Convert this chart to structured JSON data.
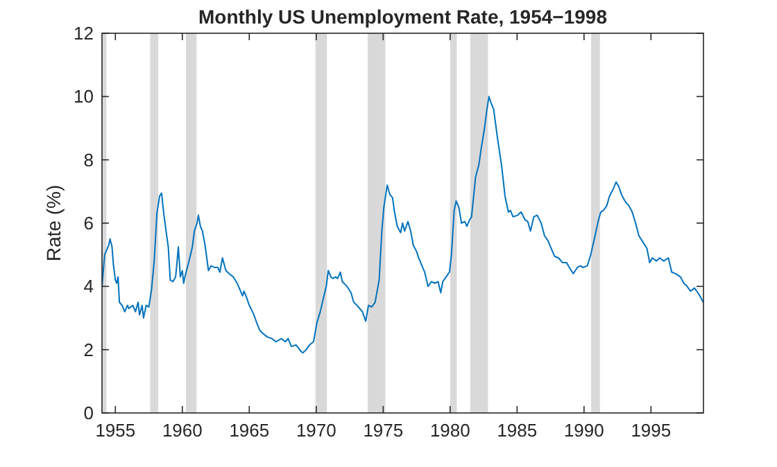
{
  "chart_data": {
    "type": "line",
    "title": "Monthly US Unemployment Rate, 1954−1998",
    "ylabel": "Rate (%)",
    "xlim": [
      1954,
      1998.92
    ],
    "xticks": [
      1955,
      1960,
      1965,
      1970,
      1975,
      1980,
      1985,
      1990,
      1995
    ],
    "ylim": [
      0,
      12
    ],
    "yticks": [
      0,
      2,
      4,
      6,
      8,
      10,
      12
    ],
    "grid": false,
    "line_style": "solid",
    "marker": "none",
    "bands": [
      {
        "axis": "x",
        "from": 1954.0,
        "to": 1954.33,
        "color": "#d9d9d9"
      },
      {
        "axis": "x",
        "from": 1957.6,
        "to": 1958.2,
        "color": "#d9d9d9"
      },
      {
        "axis": "x",
        "from": 1960.27,
        "to": 1961.06,
        "color": "#d9d9d9"
      },
      {
        "axis": "x",
        "from": 1969.94,
        "to": 1970.8,
        "color": "#d9d9d9"
      },
      {
        "axis": "x",
        "from": 1973.84,
        "to": 1975.16,
        "color": "#d9d9d9"
      },
      {
        "axis": "x",
        "from": 1980.0,
        "to": 1980.5,
        "color": "#d9d9d9"
      },
      {
        "axis": "x",
        "from": 1981.5,
        "to": 1982.83,
        "color": "#d9d9d9"
      },
      {
        "axis": "x",
        "from": 1990.53,
        "to": 1991.19,
        "color": "#d9d9d9"
      }
    ],
    "series": [
      {
        "color": "#0072bd",
        "x": [
          1954.0,
          1954.2,
          1954.3,
          1954.5,
          1954.6,
          1954.75,
          1954.85,
          1955.0,
          1955.1,
          1955.2,
          1955.3,
          1955.5,
          1955.7,
          1955.9,
          1956.0,
          1956.3,
          1956.5,
          1956.7,
          1956.8,
          1957.0,
          1957.1,
          1957.3,
          1957.5,
          1957.7,
          1957.9,
          1958.1,
          1958.3,
          1958.45,
          1958.6,
          1958.8,
          1958.95,
          1959.1,
          1959.3,
          1959.5,
          1959.6,
          1959.7,
          1959.85,
          1960.0,
          1960.1,
          1960.25,
          1960.5,
          1960.75,
          1960.9,
          1961.1,
          1961.2,
          1961.35,
          1961.5,
          1961.7,
          1961.95,
          1962.15,
          1962.4,
          1962.65,
          1962.8,
          1963.0,
          1963.25,
          1963.5,
          1963.8,
          1963.95,
          1964.1,
          1964.3,
          1964.5,
          1964.6,
          1964.8,
          1965.0,
          1965.3,
          1965.6,
          1965.8,
          1966.05,
          1966.35,
          1966.7,
          1967.0,
          1967.4,
          1967.7,
          1967.9,
          1968.15,
          1968.5,
          1968.85,
          1969.0,
          1969.25,
          1969.5,
          1969.8,
          1970.05,
          1970.3,
          1970.55,
          1970.75,
          1970.9,
          1971.1,
          1971.25,
          1971.45,
          1971.6,
          1971.8,
          1971.95,
          1972.3,
          1972.6,
          1972.8,
          1973.15,
          1973.45,
          1973.7,
          1973.9,
          1974.15,
          1974.4,
          1974.55,
          1974.7,
          1974.9,
          1975.05,
          1975.3,
          1975.5,
          1975.7,
          1975.85,
          1976.05,
          1976.3,
          1976.45,
          1976.6,
          1976.85,
          1977.05,
          1977.25,
          1977.5,
          1977.65,
          1977.9,
          1978.1,
          1978.35,
          1978.6,
          1978.85,
          1979.1,
          1979.3,
          1979.45,
          1979.7,
          1979.95,
          1980.1,
          1980.3,
          1980.45,
          1980.65,
          1980.85,
          1981.1,
          1981.25,
          1981.45,
          1981.6,
          1981.9,
          1982.15,
          1982.3,
          1982.55,
          1982.75,
          1982.9,
          1983.1,
          1983.25,
          1983.55,
          1983.85,
          1984.1,
          1984.35,
          1984.5,
          1984.7,
          1985.05,
          1985.3,
          1985.6,
          1985.8,
          1986.0,
          1986.25,
          1986.5,
          1986.8,
          1987.05,
          1987.3,
          1987.55,
          1987.8,
          1988.1,
          1988.4,
          1988.7,
          1988.9,
          1989.2,
          1989.5,
          1989.75,
          1989.9,
          1990.25,
          1990.5,
          1990.8,
          1991.05,
          1991.25,
          1991.45,
          1991.7,
          1991.9,
          1992.15,
          1992.4,
          1992.6,
          1992.8,
          1993.05,
          1993.35,
          1993.6,
          1993.85,
          1994.1,
          1994.4,
          1994.7,
          1994.9,
          1995.1,
          1995.4,
          1995.65,
          1995.95,
          1996.3,
          1996.55,
          1996.85,
          1997.2,
          1997.45,
          1997.7,
          1997.95,
          1998.25,
          1998.5,
          1998.65,
          1998.9
        ],
        "values": [
          4.0,
          5.0,
          5.1,
          5.3,
          5.5,
          5.25,
          4.7,
          4.2,
          4.1,
          4.3,
          3.5,
          3.4,
          3.2,
          3.4,
          3.3,
          3.4,
          3.2,
          3.5,
          3.1,
          3.4,
          3.0,
          3.4,
          3.35,
          3.9,
          4.8,
          6.3,
          6.85,
          6.95,
          6.35,
          5.7,
          5.25,
          4.2,
          4.15,
          4.3,
          4.75,
          5.25,
          4.3,
          4.5,
          4.1,
          4.4,
          4.8,
          5.25,
          5.75,
          6.0,
          6.25,
          5.9,
          5.75,
          5.3,
          4.5,
          4.65,
          4.6,
          4.6,
          4.45,
          4.9,
          4.5,
          4.4,
          4.3,
          4.2,
          4.1,
          3.9,
          3.7,
          3.85,
          3.65,
          3.4,
          3.15,
          2.8,
          2.6,
          2.5,
          2.4,
          2.35,
          2.25,
          2.35,
          2.25,
          2.35,
          2.1,
          2.15,
          1.95,
          1.9,
          2.0,
          2.15,
          2.25,
          2.85,
          3.2,
          3.65,
          4.0,
          4.5,
          4.3,
          4.25,
          4.3,
          4.25,
          4.45,
          4.15,
          4.0,
          3.8,
          3.5,
          3.35,
          3.2,
          2.9,
          3.4,
          3.35,
          3.5,
          3.85,
          4.2,
          5.75,
          6.5,
          7.2,
          6.9,
          6.8,
          6.35,
          5.9,
          5.7,
          6.0,
          5.75,
          6.05,
          5.75,
          5.3,
          5.1,
          4.9,
          4.65,
          4.45,
          4.0,
          4.15,
          4.1,
          4.15,
          3.8,
          4.15,
          4.3,
          4.45,
          5.0,
          6.4,
          6.7,
          6.5,
          6.0,
          6.05,
          5.9,
          6.1,
          6.2,
          7.45,
          7.85,
          8.3,
          8.95,
          9.6,
          10.0,
          9.75,
          9.6,
          8.65,
          7.8,
          6.85,
          6.35,
          6.4,
          6.2,
          6.25,
          6.35,
          6.1,
          6.05,
          5.75,
          6.2,
          6.25,
          6.0,
          5.6,
          5.45,
          5.2,
          4.95,
          4.9,
          4.75,
          4.75,
          4.6,
          4.4,
          4.6,
          4.65,
          4.6,
          4.65,
          5.0,
          5.55,
          6.05,
          6.35,
          6.4,
          6.55,
          6.85,
          7.05,
          7.3,
          7.15,
          6.9,
          6.7,
          6.55,
          6.35,
          6.0,
          5.6,
          5.4,
          5.2,
          4.75,
          4.9,
          4.8,
          4.9,
          4.8,
          4.9,
          4.45,
          4.4,
          4.3,
          4.1,
          4.0,
          3.85,
          3.95,
          3.8,
          3.7,
          3.5
        ]
      }
    ]
  }
}
